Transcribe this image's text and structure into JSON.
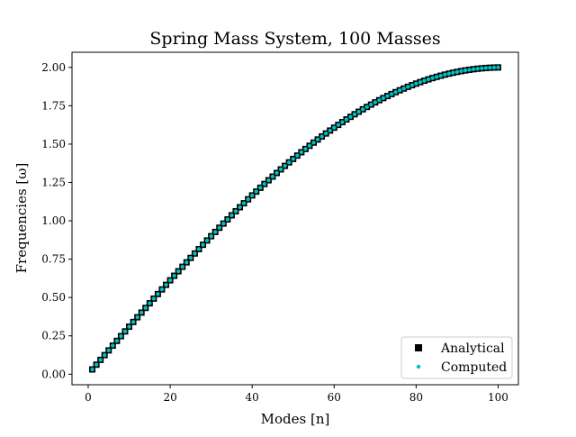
{
  "chart_data": {
    "type": "scatter",
    "title": "Spring Mass System, 100 Masses",
    "xlabel": "Modes [n]",
    "ylabel": "Frequencies [ω]",
    "xlim": [
      -3.95,
      104.95
    ],
    "ylim": [
      -0.0687,
      2.0987
    ],
    "xticks": [
      0,
      20,
      40,
      60,
      80,
      100
    ],
    "xtick_labels": [
      "0",
      "20",
      "40",
      "60",
      "80",
      "100"
    ],
    "yticks": [
      0.0,
      0.25,
      0.5,
      0.75,
      1.0,
      1.25,
      1.5,
      1.75,
      2.0
    ],
    "ytick_labels": [
      "0.00",
      "0.25",
      "0.50",
      "0.75",
      "1.00",
      "1.25",
      "1.50",
      "1.75",
      "2.00"
    ],
    "grid": false,
    "legend_position": "lower-right",
    "n_masses": 100,
    "series": [
      {
        "name": "Analytical",
        "marker": "square",
        "color": "#000000"
      },
      {
        "name": "Computed",
        "marker": "circle",
        "color": "#00bfbf"
      }
    ]
  }
}
